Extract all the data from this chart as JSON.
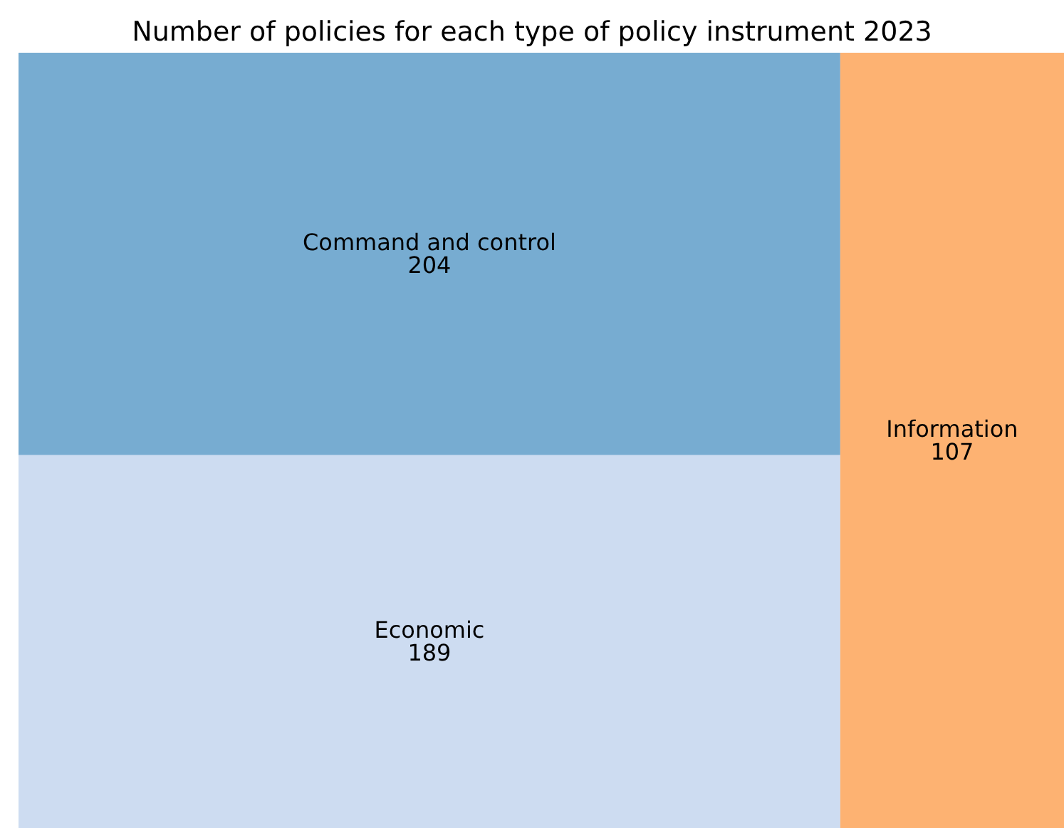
{
  "chart_data": {
    "type": "other",
    "title": "Number of policies for each type of policy instrument 2023",
    "categories": [
      "Economic",
      "Command and control",
      "Information"
    ],
    "values": [
      189,
      204,
      107
    ],
    "colors": [
      "#cddcf1",
      "#77acd1",
      "#fdb272"
    ],
    "data_labels": true
  }
}
